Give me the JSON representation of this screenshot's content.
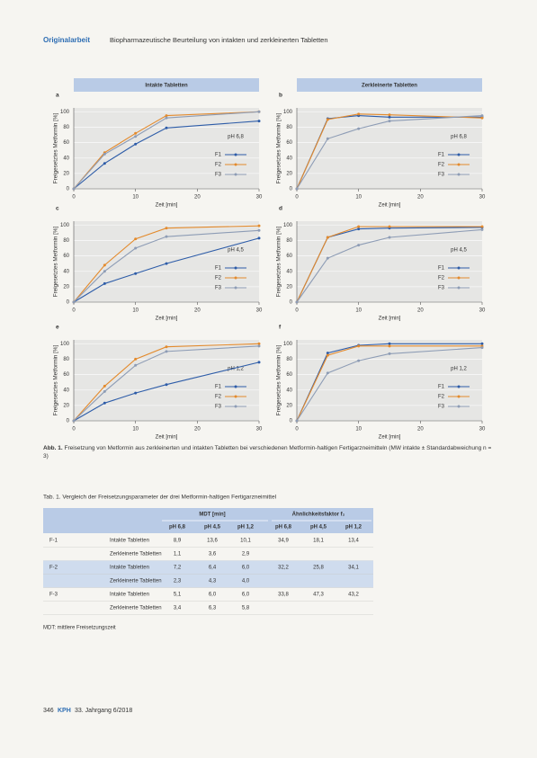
{
  "header": {
    "section": "Originalarbeit",
    "title": "Biopharmazeutische Beurteilung von intakten und zerkleinerten Tabletten"
  },
  "panel_headers": [
    "Intakte Tabletten",
    "Zerkleinerte Tabletten"
  ],
  "chart_data": [
    {
      "type": "line",
      "label": "a",
      "annotation": "pH 6,8",
      "x_label": "Zeit [min]",
      "y_label": "Freigesetztes Metformin [%]",
      "x": [
        0,
        5,
        10,
        15,
        30
      ],
      "xlim": [
        0,
        30
      ],
      "xticks": [
        0,
        10,
        20,
        30
      ],
      "ylim": [
        0,
        105
      ],
      "yticks": [
        0,
        20,
        40,
        60,
        80,
        100
      ],
      "legend": "lower right",
      "series": [
        {
          "name": "F1",
          "color": "#2d5ca8",
          "values": [
            0,
            33,
            58,
            79,
            88
          ]
        },
        {
          "name": "F2",
          "color": "#e38a2c",
          "values": [
            0,
            47,
            72,
            95,
            100
          ]
        },
        {
          "name": "F3",
          "color": "#8d9cb5",
          "values": [
            0,
            45,
            68,
            92,
            100
          ]
        }
      ]
    },
    {
      "type": "line",
      "label": "b",
      "annotation": "pH 6,8",
      "x_label": "Zeit [min]",
      "y_label": "Freigesetztes Metformin [%]",
      "x": [
        0,
        5,
        10,
        15,
        30
      ],
      "xlim": [
        0,
        30
      ],
      "xticks": [
        0,
        10,
        20,
        30
      ],
      "ylim": [
        0,
        105
      ],
      "yticks": [
        0,
        20,
        40,
        60,
        80,
        100
      ],
      "legend": "lower right",
      "series": [
        {
          "name": "F1",
          "color": "#2d5ca8",
          "values": [
            0,
            91,
            95,
            93,
            93
          ]
        },
        {
          "name": "F2",
          "color": "#e38a2c",
          "values": [
            0,
            90,
            97,
            96,
            92
          ]
        },
        {
          "name": "F3",
          "color": "#8d9cb5",
          "values": [
            0,
            65,
            78,
            88,
            95
          ]
        }
      ]
    },
    {
      "type": "line",
      "label": "c",
      "annotation": "pH 4,5",
      "x_label": "Zeit [min]",
      "y_label": "Freigesetztes Metformin [%]",
      "x": [
        0,
        5,
        10,
        15,
        30
      ],
      "xlim": [
        0,
        30
      ],
      "xticks": [
        0,
        10,
        20,
        30
      ],
      "ylim": [
        0,
        105
      ],
      "yticks": [
        0,
        20,
        40,
        60,
        80,
        100
      ],
      "legend": "lower right",
      "series": [
        {
          "name": "F1",
          "color": "#2d5ca8",
          "values": [
            0,
            24,
            37,
            50,
            83
          ]
        },
        {
          "name": "F2",
          "color": "#e38a2c",
          "values": [
            0,
            48,
            82,
            96,
            99
          ]
        },
        {
          "name": "F3",
          "color": "#8d9cb5",
          "values": [
            0,
            40,
            70,
            85,
            93
          ]
        }
      ]
    },
    {
      "type": "line",
      "label": "d",
      "annotation": "pH 4,5",
      "x_label": "Zeit [min]",
      "y_label": "Freigesetztes Metformin [%]",
      "x": [
        0,
        5,
        10,
        15,
        30
      ],
      "xlim": [
        0,
        30
      ],
      "xticks": [
        0,
        10,
        20,
        30
      ],
      "ylim": [
        0,
        105
      ],
      "yticks": [
        0,
        20,
        40,
        60,
        80,
        100
      ],
      "legend": "lower right",
      "series": [
        {
          "name": "F1",
          "color": "#2d5ca8",
          "values": [
            0,
            84,
            95,
            96,
            97
          ]
        },
        {
          "name": "F2",
          "color": "#e38a2c",
          "values": [
            0,
            84,
            98,
            98,
            98
          ]
        },
        {
          "name": "F3",
          "color": "#8d9cb5",
          "values": [
            0,
            57,
            74,
            84,
            94
          ]
        }
      ]
    },
    {
      "type": "line",
      "label": "e",
      "annotation": "pH 1,2",
      "x_label": "Zeit [min]",
      "y_label": "Freigesetztes Metformin [%]",
      "x": [
        0,
        5,
        10,
        15,
        30
      ],
      "xlim": [
        0,
        30
      ],
      "xticks": [
        0,
        10,
        20,
        30
      ],
      "ylim": [
        0,
        105
      ],
      "yticks": [
        0,
        20,
        40,
        60,
        80,
        100
      ],
      "legend": "lower right",
      "series": [
        {
          "name": "F1",
          "color": "#2d5ca8",
          "values": [
            0,
            23,
            36,
            47,
            76
          ]
        },
        {
          "name": "F2",
          "color": "#e38a2c",
          "values": [
            0,
            45,
            80,
            96,
            100
          ]
        },
        {
          "name": "F3",
          "color": "#8d9cb5",
          "values": [
            0,
            38,
            72,
            90,
            97
          ]
        }
      ]
    },
    {
      "type": "line",
      "label": "f",
      "annotation": "pH 1,2",
      "x_label": "Zeit [min]",
      "y_label": "Freigesetztes Metformin [%]",
      "x": [
        0,
        5,
        10,
        15,
        30
      ],
      "xlim": [
        0,
        30
      ],
      "xticks": [
        0,
        10,
        20,
        30
      ],
      "ylim": [
        0,
        105
      ],
      "yticks": [
        0,
        20,
        40,
        60,
        80,
        100
      ],
      "legend": "lower right",
      "series": [
        {
          "name": "F1",
          "color": "#2d5ca8",
          "values": [
            0,
            88,
            98,
            100,
            100
          ]
        },
        {
          "name": "F2",
          "color": "#e38a2c",
          "values": [
            0,
            85,
            97,
            97,
            97
          ]
        },
        {
          "name": "F3",
          "color": "#8d9cb5",
          "values": [
            0,
            62,
            78,
            87,
            95
          ]
        }
      ]
    }
  ],
  "caption": {
    "label": "Abb. 1.",
    "text": "Freisetzung von Metformin aus zerkleinerten und intakten Tabletten bei verschiedenen Metformin-haltigen Fertigarzneimitteln (MW intakte ± Standardabweichung n = 3)"
  },
  "table": {
    "title": "Tab. 1. Vergleich der Freisetzungsparameter der drei Metformin-haltigen Fertigarzneimittel",
    "group_headers": [
      "MDT [min]",
      "Ähnlichkeitsfaktor f₂"
    ],
    "subheaders": [
      "pH 6,8",
      "pH 4,5",
      "pH 1,2",
      "pH 6,8",
      "pH 4,5",
      "pH 1,2"
    ],
    "groups": [
      {
        "name": "F-1",
        "rows": [
          {
            "label": "Intakte Tabletten",
            "values": [
              "8,9",
              "13,6",
              "10,1",
              "34,9",
              "18,1",
              "13,4"
            ]
          },
          {
            "label": "Zerkleinerte Tabletten",
            "values": [
              "1,1",
              "3,6",
              "2,9"
            ]
          }
        ]
      },
      {
        "name": "F-2",
        "rows": [
          {
            "label": "Intakte Tabletten",
            "values": [
              "7,2",
              "6,4",
              "6,0",
              "32,2",
              "25,8",
              "34,1"
            ]
          },
          {
            "label": "Zerkleinerte Tabletten",
            "values": [
              "2,3",
              "4,3",
              "4,0"
            ]
          }
        ]
      },
      {
        "name": "F-3",
        "rows": [
          {
            "label": "Intakte Tabletten",
            "values": [
              "5,1",
              "6,0",
              "6,0",
              "33,8",
              "47,3",
              "43,2"
            ]
          },
          {
            "label": "Zerkleinerte Tabletten",
            "values": [
              "3,4",
              "6,3",
              "5,8"
            ]
          }
        ]
      }
    ],
    "note": "MDT: mittlere Freisetzungszeit"
  },
  "footer": {
    "page": "346",
    "journal": "KPH",
    "issue": "33. Jahrgang 6/2018"
  }
}
